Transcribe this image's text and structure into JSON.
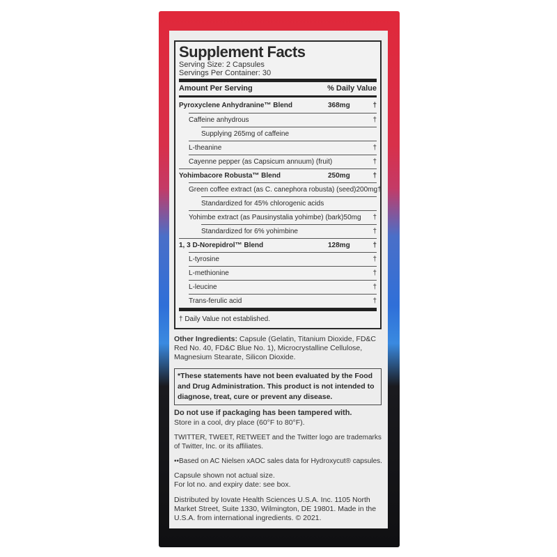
{
  "facts": {
    "title": "Supplement Facts",
    "serving_size": "Serving Size: 2 Capsules",
    "servings_per_container": "Servings Per Container: 30",
    "col_amount": "Amount Per Serving",
    "col_dv": "% Daily Value",
    "rows": [
      {
        "name": "Pyroxyclene Anhydranine™ Blend",
        "amount": "368mg",
        "dv": "†",
        "level": 0
      },
      {
        "name": "Caffeine anhydrous",
        "amount": "",
        "dv": "†",
        "level": 1
      },
      {
        "name": "Supplying 265mg of caffeine",
        "amount": "",
        "dv": "",
        "level": 2
      },
      {
        "name": "L-theanine",
        "amount": "",
        "dv": "†",
        "level": 1
      },
      {
        "name": "Cayenne pepper (as Capsicum annuum) (fruit)",
        "amount": "",
        "dv": "†",
        "level": 1
      },
      {
        "name": "Yohimbacore Robusta™ Blend",
        "amount": "250mg",
        "dv": "†",
        "level": 0
      },
      {
        "name": "Green coffee extract (as C. canephora robusta) (seed)",
        "amount": "200mg",
        "dv": "†",
        "level": 1
      },
      {
        "name": "Standardized for 45% chlorogenic acids",
        "amount": "",
        "dv": "",
        "level": 2
      },
      {
        "name": "Yohimbe extract (as Pausinystalia yohimbe) (bark)",
        "amount": "50mg",
        "dv": "†",
        "level": 1
      },
      {
        "name": "Standardized for 6% yohimbine",
        "amount": "",
        "dv": "†",
        "level": 2
      },
      {
        "name": "1, 3 D-Norepidrol™ Blend",
        "amount": "128mg",
        "dv": "†",
        "level": 0
      },
      {
        "name": "L-tyrosine",
        "amount": "",
        "dv": "†",
        "level": 1
      },
      {
        "name": "L-methionine",
        "amount": "",
        "dv": "†",
        "level": 1
      },
      {
        "name": "L-leucine",
        "amount": "",
        "dv": "†",
        "level": 1
      },
      {
        "name": "Trans-ferulic acid",
        "amount": "",
        "dv": "†",
        "level": 1
      }
    ],
    "footnote": "† Daily Value not established."
  },
  "other_ingredients": {
    "label": "Other Ingredients:",
    "text": " Capsule (Gelatin, Titanium Dioxide, FD&C Red No. 40, FD&C Blue No. 1), Microcrystalline Cellulose, Magnesium Stearate, Silicon Dioxide."
  },
  "fda": "*These statements have not been evaluated by the Food and Drug Administration. This product is not intended to diagnose, treat, cure or prevent any disease.",
  "warning": "Do not use if packaging has been tampered with.",
  "storage": "Store in a cool, dry place (60°F to 80°F).",
  "twitter": "TWITTER, TWEET, RETWEET and the Twitter logo are trademarks of Twitter, Inc. or its affiliates.",
  "nielsen": "••Based on AC Nielsen xAOC sales data for Hydroxycut® capsules.",
  "capsule_note": "Capsule shown not actual size.",
  "lot_note": "For lot no. and expiry date: see box.",
  "distributor": "Distributed by Iovate Health Sciences U.S.A. Inc. 1105 North Market Street, Suite 1330, Wilmington, DE 19801. Made in the U.S.A. from international ingredients. © 2021.",
  "colors": {
    "red": "#e0283a",
    "blue": "#2f6fd8",
    "black": "#101012"
  }
}
